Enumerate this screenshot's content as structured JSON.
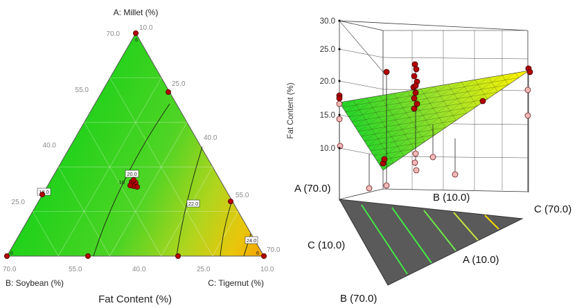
{
  "chart_data": [
    {
      "type": "ternary-contour",
      "title": "Fat Content (%)",
      "vertices": {
        "A": "A: Millet (%)",
        "B": "B: Soybean (%)",
        "C": "C: Tigernut (%)"
      },
      "axis_range": [
        10.0,
        70.0
      ],
      "tick_labels": {
        "A": [
          "70.0",
          "55.0",
          "40.0",
          "25.0",
          "10.0"
        ],
        "B": [
          "70.0",
          "55.0",
          "40.0",
          "25.0",
          "10.0"
        ],
        "C": [
          "10.0",
          "25.0",
          "40.0",
          "55.0",
          "70.0"
        ]
      },
      "contours": [
        {
          "value": "20.0",
          "label": "20.0"
        },
        {
          "value": "22.0",
          "label": "22.0"
        },
        {
          "value": "24.0",
          "label": "24.0"
        },
        {
          "value": "18.0",
          "label": "18.0"
        }
      ],
      "design_points": [
        {
          "A": 70,
          "B": 10,
          "C": 20,
          "n": "6"
        },
        {
          "A": 55,
          "B": 10,
          "C": 35
        },
        {
          "A": 30,
          "B": 60,
          "C": 10
        },
        {
          "A": 10,
          "B": 70,
          "C": 20,
          "n": "6"
        },
        {
          "A": 10,
          "B": 50,
          "C": 40
        },
        {
          "A": 10,
          "B": 30,
          "C": 60
        },
        {
          "A": 10,
          "B": 10,
          "C": 80,
          "n": "6"
        },
        {
          "A": 25,
          "B": 10,
          "C": 65
        },
        {
          "A": 30,
          "B": 30,
          "C": 40,
          "n": "10"
        }
      ],
      "center_label": "10",
      "color_low": "#1fd51f",
      "color_high": "#f5a800"
    },
    {
      "type": "surface-3d",
      "zlabel": "Fat Content (%)",
      "z_ticks": [
        "10.0",
        "15.0",
        "20.0",
        "25.0",
        "30.0"
      ],
      "corner_labels": {
        "left_top": "A (70.0)",
        "left_mid": "C (10.0)",
        "back": "B (10.0)",
        "right": "C (70.0)",
        "front": "A (10.0)",
        "bottom": "B (70.0)"
      },
      "point_color_above": "#b30000",
      "point_color_below": "#f4b8b8",
      "surface_low": "#1fd51f",
      "surface_high": "#ffe600"
    }
  ]
}
